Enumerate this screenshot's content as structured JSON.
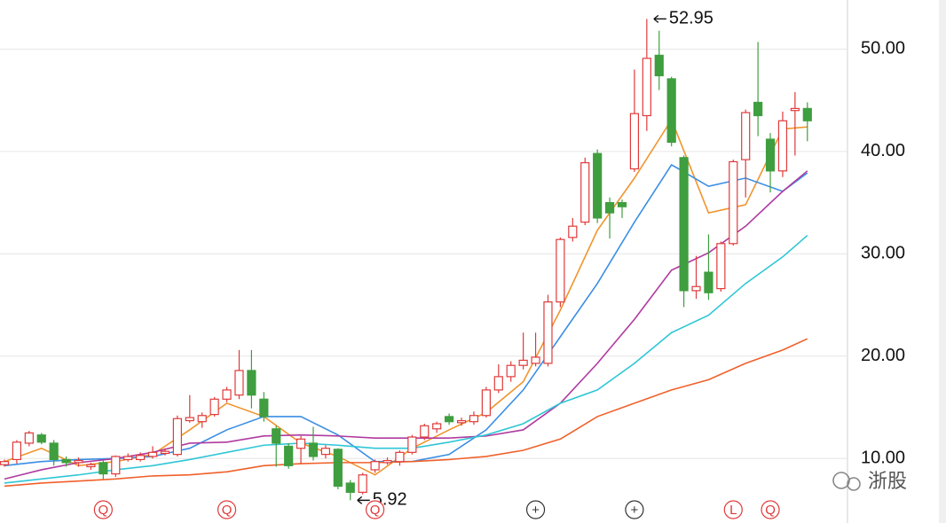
{
  "chart_data": {
    "type": "candlestick",
    "ylim": [
      3.7,
      54.8
    ],
    "yticks": [
      {
        "value": 10,
        "label": "10.00"
      },
      {
        "value": 20,
        "label": "20.00"
      },
      {
        "value": 30,
        "label": "30.00"
      },
      {
        "value": 40,
        "label": "40.00"
      },
      {
        "value": 50,
        "label": "50.00"
      }
    ],
    "grid": true,
    "up_color": "#e03a3a",
    "down_color": "#3f9e3f",
    "open": [
      9.4,
      9.9,
      11.5,
      12.3,
      11.5,
      9.9,
      9.6,
      9.2,
      9.6,
      8.5,
      9.9,
      9.9,
      10.2,
      10.5,
      10.4,
      13.7,
      13.6,
      14.3,
      15.8,
      16.2,
      18.6,
      15.8,
      12.9,
      11.2,
      11.0,
      11.5,
      10.4,
      10.9,
      7.6,
      6.7,
      8.9,
      9.6,
      9.7,
      10.6,
      12.1,
      12.9,
      14.1,
      13.5,
      13.6,
      14.2,
      16.7,
      18.0,
      19.1,
      19.3,
      19.3,
      25.3,
      31.6,
      33.1,
      39.8,
      35.0,
      35.0,
      38.3,
      43.5,
      49.4,
      47.1,
      39.4,
      26.4,
      28.2,
      26.6,
      31.0,
      39.2,
      44.8,
      41.2,
      38.1,
      44.0,
      44.2
    ],
    "high": [
      9.9,
      11.8,
      12.7,
      12.5,
      11.8,
      10.2,
      10.1,
      9.6,
      9.8,
      10.3,
      10.5,
      10.6,
      11.2,
      11.0,
      14.2,
      16.2,
      14.5,
      16.0,
      17.0,
      20.6,
      20.6,
      16.5,
      13.2,
      11.5,
      12.2,
      13.1,
      11.3,
      11.0,
      7.9,
      8.6,
      9.9,
      10.1,
      10.8,
      12.3,
      13.4,
      13.6,
      14.4,
      14.0,
      14.6,
      17.0,
      19.2,
      19.5,
      22.3,
      22.3,
      26.0,
      31.6,
      33.5,
      39.4,
      40.2,
      35.5,
      35.3,
      48.0,
      52.95,
      51.8,
      47.3,
      39.6,
      29.8,
      31.9,
      31.2,
      39.2,
      44.1,
      50.7,
      41.8,
      43.9,
      45.8,
      44.8
    ],
    "low": [
      9.2,
      9.5,
      11.2,
      11.4,
      9.3,
      9.2,
      9.2,
      8.9,
      8.0,
      8.2,
      9.7,
      9.7,
      10.0,
      10.3,
      10.2,
      13.5,
      13.0,
      14.1,
      15.5,
      15.8,
      14.9,
      13.6,
      9.2,
      9.0,
      9.5,
      9.8,
      10.0,
      7.0,
      5.92,
      6.5,
      8.6,
      9.4,
      9.3,
      10.4,
      11.8,
      12.5,
      13.3,
      13.2,
      13.3,
      14.0,
      16.4,
      17.5,
      18.7,
      19.0,
      19.0,
      24.8,
      31.2,
      32.8,
      33.0,
      31.5,
      33.5,
      38.0,
      42.0,
      46.0,
      40.5,
      24.8,
      25.6,
      25.5,
      26.3,
      30.8,
      35.5,
      41.5,
      36.0,
      37.5,
      39.6,
      41.0
    ],
    "close": [
      9.7,
      11.6,
      12.5,
      11.6,
      9.9,
      9.6,
      9.8,
      9.4,
      8.5,
      10.2,
      10.2,
      10.3,
      10.6,
      10.7,
      13.9,
      14.0,
      14.2,
      15.8,
      16.7,
      18.6,
      16.2,
      14.1,
      11.5,
      9.3,
      11.9,
      10.2,
      11.0,
      7.3,
      6.7,
      8.4,
      9.7,
      9.8,
      10.6,
      12.1,
      13.2,
      13.4,
      13.6,
      13.7,
      14.2,
      16.7,
      18.0,
      19.1,
      19.6,
      19.9,
      25.3,
      31.4,
      32.7,
      38.9,
      33.5,
      34.0,
      34.6,
      43.7,
      49.1,
      47.4,
      40.9,
      26.4,
      26.8,
      26.2,
      31.0,
      39.0,
      43.8,
      43.5,
      38.1,
      43.0,
      44.2,
      43.0
    ],
    "lines": [
      {
        "color": "#f0952e",
        "x": [
          0,
          3,
          6,
          9,
          12,
          15,
          18,
          21,
          24,
          27,
          30,
          33,
          36,
          39,
          42,
          45,
          48,
          51,
          54,
          57,
          60,
          63,
          65
        ],
        "values": [
          9.7,
          11.0,
          9.3,
          9.7,
          10.4,
          12.8,
          15.4,
          14.1,
          11.5,
          10.2,
          8.4,
          11.0,
          12.8,
          14.5,
          17.5,
          24.5,
          32.3,
          37.4,
          43.1,
          34.0,
          34.8,
          42.2,
          42.4
        ]
      },
      {
        "color": "#3a8ee6",
        "x": [
          0,
          3,
          6,
          9,
          12,
          15,
          18,
          21,
          24,
          27,
          30,
          33,
          36,
          39,
          42,
          45,
          48,
          51,
          54,
          57,
          60,
          63,
          65
        ],
        "values": [
          9.3,
          9.7,
          9.9,
          10.0,
          10.2,
          11.0,
          12.8,
          14.1,
          14.1,
          12.3,
          9.7,
          9.7,
          10.4,
          12.8,
          16.7,
          21.9,
          27.1,
          33.1,
          38.7,
          36.6,
          37.4,
          36.1,
          37.9
        ]
      },
      {
        "color": "#b03aa0",
        "x": [
          0,
          3,
          6,
          9,
          12,
          15,
          18,
          21,
          24,
          27,
          30,
          33,
          36,
          39,
          42,
          45,
          48,
          51,
          54,
          57,
          60,
          63,
          65
        ],
        "values": [
          8.0,
          8.9,
          9.6,
          10.0,
          10.6,
          11.5,
          11.6,
          12.2,
          12.3,
          12.2,
          12.0,
          12.0,
          12.0,
          12.2,
          12.8,
          15.4,
          19.3,
          23.6,
          28.4,
          30.1,
          32.7,
          36.1,
          38.1
        ]
      },
      {
        "color": "#2fc6d6",
        "x": [
          0,
          3,
          6,
          9,
          12,
          15,
          18,
          21,
          24,
          27,
          30,
          33,
          36,
          39,
          42,
          45,
          48,
          51,
          54,
          57,
          60,
          63,
          65
        ],
        "values": [
          7.6,
          8.0,
          8.4,
          8.9,
          9.3,
          9.9,
          10.6,
          11.3,
          11.5,
          11.3,
          11.0,
          11.0,
          11.6,
          12.3,
          13.4,
          15.4,
          16.7,
          19.3,
          22.3,
          24.0,
          27.1,
          29.7,
          31.8
        ]
      },
      {
        "color": "#f0602a",
        "x": [
          0,
          3,
          6,
          9,
          12,
          15,
          18,
          21,
          24,
          27,
          30,
          33,
          36,
          39,
          42,
          45,
          48,
          51,
          54,
          57,
          60,
          63,
          65
        ],
        "values": [
          7.3,
          7.6,
          7.8,
          8.0,
          8.3,
          8.4,
          8.7,
          9.3,
          9.5,
          9.6,
          9.6,
          9.7,
          9.9,
          10.2,
          10.8,
          11.9,
          14.1,
          15.4,
          16.7,
          17.7,
          19.3,
          20.6,
          21.7
        ]
      }
    ],
    "markers": [
      {
        "index": 8,
        "label": "Q"
      },
      {
        "index": 18,
        "label": "Q"
      },
      {
        "index": 30,
        "label": "Q"
      },
      {
        "index": 43,
        "label": "+"
      },
      {
        "index": 51,
        "label": "+"
      },
      {
        "index": 59,
        "label": "L"
      },
      {
        "index": 62,
        "label": "Q"
      }
    ],
    "watermark": "浙股"
  }
}
